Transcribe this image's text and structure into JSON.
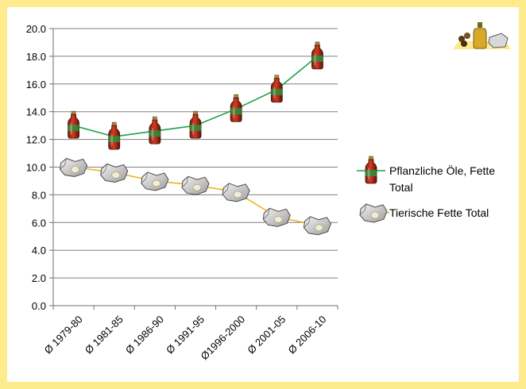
{
  "chart_data": {
    "type": "line",
    "categories": [
      "Ø 1979-80",
      "Ø 1981-85",
      "Ø 1986-90",
      "Ø 1991-95",
      "Ø1996-2000",
      "Ø 2001-05",
      "Ø 2006-10"
    ],
    "series": [
      {
        "name_lines": [
          "Pflanzliche Öle, Fette",
          "Total"
        ],
        "values": [
          13.0,
          12.2,
          12.6,
          13.0,
          14.2,
          15.6,
          18.0
        ],
        "color": "#1fa14a",
        "marker": "bottle-icon"
      },
      {
        "name_lines": [
          "Tierische Fette Total"
        ],
        "values": [
          10.0,
          9.6,
          9.0,
          8.7,
          8.2,
          6.4,
          5.8
        ],
        "color": "#f0b323",
        "marker": "fat-piece-icon"
      }
    ],
    "yticks": [
      "0.0",
      "2.0",
      "4.0",
      "6.0",
      "8.0",
      "10.0",
      "12.0",
      "14.0",
      "16.0",
      "18.0",
      "20.0"
    ],
    "ylim": [
      0,
      20
    ],
    "grid": true,
    "legend_position": "right",
    "frame_color": "#fdeb8e",
    "gridline_color": "#7f7f7f"
  }
}
